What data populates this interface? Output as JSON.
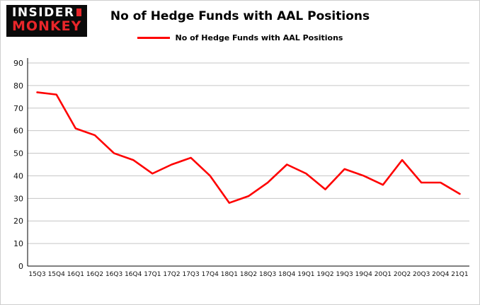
{
  "logo": {
    "line1": "INSIDER",
    "line2": "MONKEY"
  },
  "legend": {
    "label": "No of Hedge Funds with AAL Positions"
  },
  "colors": {
    "line": "#fe0000",
    "grid": "#c6c6c6",
    "axis": "#000000",
    "logo_bg": "#0a0a0a",
    "logo_accent": "#e8262a"
  },
  "chart_data": {
    "type": "line",
    "title": "No of Hedge Funds with AAL Positions",
    "xlabel": "",
    "ylabel": "",
    "categories": [
      "15Q3",
      "15Q4",
      "16Q1",
      "16Q2",
      "16Q3",
      "16Q4",
      "17Q1",
      "17Q2",
      "17Q3",
      "17Q4",
      "18Q1",
      "18Q2",
      "18Q3",
      "18Q4",
      "19Q1",
      "19Q2",
      "19Q3",
      "19Q4",
      "20Q1",
      "20Q2",
      "20Q3",
      "20Q4",
      "21Q1"
    ],
    "values": [
      77,
      76,
      61,
      58,
      50,
      47,
      41,
      45,
      48,
      40,
      28,
      31,
      37,
      45,
      41,
      34,
      43,
      40,
      36,
      47,
      37,
      37,
      32
    ],
    "ylim": [
      0,
      90
    ],
    "ytick_step": 10,
    "grid": true,
    "legend_position": "top",
    "series_name": "No of Hedge Funds with AAL Positions"
  }
}
